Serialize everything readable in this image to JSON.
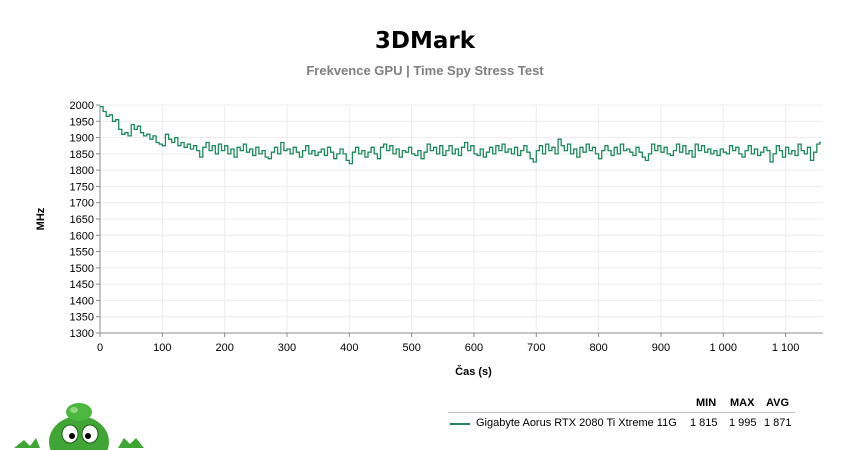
{
  "title": "3DMark",
  "subtitle": "Frekvence GPU | Time Spy Stress Test",
  "colors": {
    "series": "#1b8a5a",
    "axis": "#8c8c8c",
    "grid": "#ececec",
    "subtitle": "#7f7f7f"
  },
  "legend": {
    "headers": {
      "min": "MIN",
      "max": "MAX",
      "avg": "AVG"
    },
    "series_name": "Gigabyte Aorus RTX 2080 Ti Xtreme 11G",
    "min": "1 815",
    "max": "1 995",
    "avg": "1 871"
  },
  "chart_data": {
    "type": "line",
    "xlabel": "Čas (s)",
    "ylabel": "MHz",
    "xlim": [
      0,
      1160
    ],
    "ylim": [
      1300,
      2000
    ],
    "x_ticks": [
      0,
      100,
      200,
      300,
      400,
      500,
      600,
      700,
      800,
      900,
      1000,
      1100
    ],
    "x_tick_labels": [
      "0",
      "100",
      "200",
      "300",
      "400",
      "500",
      "600",
      "700",
      "800",
      "900",
      "1 000",
      "1 100"
    ],
    "y_ticks": [
      1300,
      1350,
      1400,
      1450,
      1500,
      1550,
      1600,
      1650,
      1700,
      1750,
      1800,
      1850,
      1900,
      1950,
      2000
    ],
    "grid": true,
    "series": [
      {
        "name": "Gigabyte Aorus RTX 2080 Ti Xtreme 11G",
        "x": [
          0,
          5,
          10,
          15,
          20,
          25,
          30,
          35,
          40,
          45,
          50,
          55,
          60,
          65,
          70,
          75,
          80,
          85,
          90,
          95,
          100,
          105,
          110,
          115,
          120,
          125,
          130,
          135,
          140,
          145,
          150,
          155,
          160,
          165,
          170,
          175,
          180,
          185,
          190,
          195,
          200,
          205,
          210,
          215,
          220,
          225,
          230,
          235,
          240,
          245,
          250,
          255,
          260,
          265,
          270,
          275,
          280,
          285,
          290,
          295,
          300,
          305,
          310,
          315,
          320,
          325,
          330,
          335,
          340,
          345,
          350,
          355,
          360,
          365,
          370,
          375,
          380,
          385,
          390,
          395,
          400,
          405,
          410,
          415,
          420,
          425,
          430,
          435,
          440,
          445,
          450,
          455,
          460,
          465,
          470,
          475,
          480,
          485,
          490,
          495,
          500,
          505,
          510,
          515,
          520,
          525,
          530,
          535,
          540,
          545,
          550,
          555,
          560,
          565,
          570,
          575,
          580,
          585,
          590,
          595,
          600,
          605,
          610,
          615,
          620,
          625,
          630,
          635,
          640,
          645,
          650,
          655,
          660,
          665,
          670,
          675,
          680,
          685,
          690,
          695,
          700,
          705,
          710,
          715,
          720,
          725,
          730,
          735,
          740,
          745,
          750,
          755,
          760,
          765,
          770,
          775,
          780,
          785,
          790,
          795,
          800,
          805,
          810,
          815,
          820,
          825,
          830,
          835,
          840,
          845,
          850,
          855,
          860,
          865,
          870,
          875,
          880,
          885,
          890,
          895,
          900,
          905,
          910,
          915,
          920,
          925,
          930,
          935,
          940,
          945,
          950,
          955,
          960,
          965,
          970,
          975,
          980,
          985,
          990,
          995,
          1000,
          1005,
          1010,
          1015,
          1020,
          1025,
          1030,
          1035,
          1040,
          1045,
          1050,
          1055,
          1060,
          1065,
          1070,
          1075,
          1080,
          1085,
          1090,
          1095,
          1100,
          1105,
          1110,
          1115,
          1120,
          1125,
          1130,
          1135,
          1140,
          1145,
          1150,
          1155
        ],
        "values": [
          1995,
          1980,
          1965,
          1970,
          1950,
          1955,
          1925,
          1910,
          1915,
          1905,
          1940,
          1925,
          1935,
          1915,
          1905,
          1910,
          1895,
          1905,
          1885,
          1880,
          1875,
          1910,
          1895,
          1885,
          1900,
          1875,
          1885,
          1870,
          1880,
          1865,
          1875,
          1860,
          1840,
          1870,
          1885,
          1860,
          1875,
          1850,
          1880,
          1860,
          1875,
          1850,
          1865,
          1840,
          1870,
          1860,
          1880,
          1855,
          1865,
          1845,
          1870,
          1850,
          1860,
          1840,
          1835,
          1855,
          1870,
          1850,
          1885,
          1860,
          1865,
          1850,
          1870,
          1855,
          1840,
          1860,
          1875,
          1850,
          1860,
          1845,
          1855,
          1865,
          1845,
          1870,
          1855,
          1835,
          1850,
          1865,
          1850,
          1830,
          1820,
          1855,
          1870,
          1850,
          1860,
          1840,
          1855,
          1870,
          1850,
          1835,
          1870,
          1880,
          1860,
          1875,
          1850,
          1865,
          1840,
          1860,
          1855,
          1870,
          1850,
          1845,
          1860,
          1835,
          1855,
          1880,
          1860,
          1870,
          1850,
          1875,
          1845,
          1860,
          1875,
          1850,
          1865,
          1845,
          1870,
          1885,
          1860,
          1875,
          1850,
          1845,
          1865,
          1840,
          1855,
          1870,
          1850,
          1875,
          1860,
          1880,
          1855,
          1865,
          1850,
          1870,
          1845,
          1860,
          1875,
          1855,
          1835,
          1825,
          1860,
          1875,
          1850,
          1880,
          1860,
          1870,
          1850,
          1895,
          1875,
          1860,
          1880,
          1850,
          1865,
          1840,
          1870,
          1855,
          1880,
          1860,
          1870,
          1850,
          1835,
          1860,
          1875,
          1860,
          1845,
          1870,
          1850,
          1880,
          1860,
          1865,
          1855,
          1845,
          1870,
          1855,
          1840,
          1830,
          1850,
          1880,
          1860,
          1875,
          1855,
          1870,
          1850,
          1845,
          1860,
          1880,
          1855,
          1875,
          1850,
          1860,
          1840,
          1880,
          1860,
          1875,
          1855,
          1865,
          1850,
          1860,
          1845,
          1865,
          1855,
          1850,
          1875,
          1860,
          1870,
          1850,
          1840,
          1860,
          1875,
          1850,
          1865,
          1845,
          1855,
          1870,
          1860,
          1825,
          1850,
          1875,
          1860,
          1840,
          1870,
          1850,
          1860,
          1845,
          1880,
          1860,
          1850,
          1870,
          1830,
          1855,
          1880,
          1885
        ]
      }
    ]
  }
}
